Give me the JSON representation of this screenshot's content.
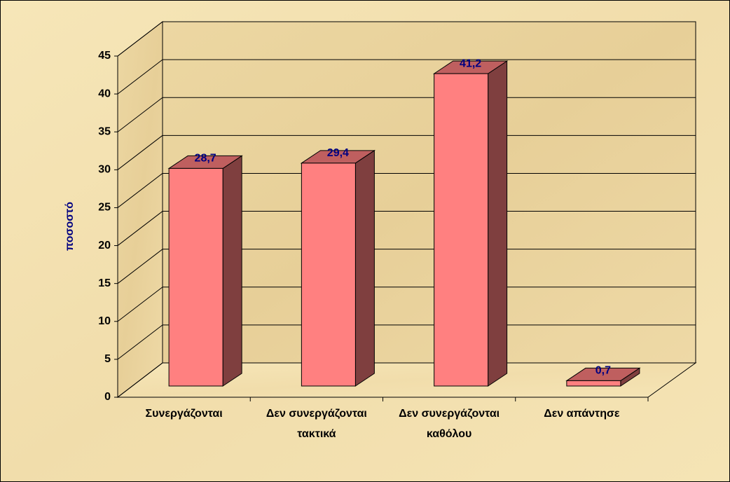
{
  "chart_data": {
    "type": "bar3d",
    "y_label": "ποσοστό",
    "categories": [
      "Συνεργάζονται",
      "Δεν συνεργάζονται τακτικά",
      "Δεν συνεργάζονται καθόλου",
      "Δεν απάντησε"
    ],
    "values": [
      28.7,
      29.4,
      41.2,
      0.7
    ],
    "value_labels": [
      "28,7",
      "29,4",
      "41,2",
      "0,7"
    ],
    "color": "#ff8080",
    "ylim": [
      0,
      45
    ],
    "yticks": [
      0,
      5,
      10,
      15,
      20,
      25,
      30,
      35,
      40,
      45
    ],
    "grid": true
  }
}
